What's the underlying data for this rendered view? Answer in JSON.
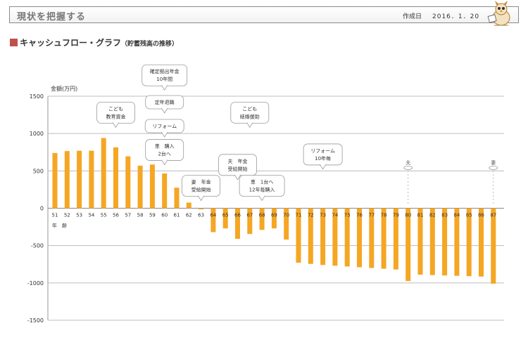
{
  "header": {
    "title": "現状を把握する",
    "date_label": "作成日",
    "date": "2016．1．20",
    "mascot_icon": "owl-mascot-icon"
  },
  "section": {
    "title": "キャッシュフロー・グラフ",
    "subtitle": "（貯蓄残高の推移）"
  },
  "chart_data": {
    "type": "bar",
    "title": "キャッシュフロー・グラフ（貯蓄残高の推移）",
    "ylabel": "金額(万円)",
    "xlabel": "年　齢",
    "ylim": [
      -1500,
      1500
    ],
    "yticks": [
      1500,
      1000,
      500,
      0,
      -500,
      -1000,
      -1500
    ],
    "grid": true,
    "bar_color": "#f5a623",
    "categories": [
      "51",
      "52",
      "53",
      "54",
      "55",
      "56",
      "57",
      "58",
      "59",
      "60",
      "61",
      "62",
      "63",
      "64",
      "65",
      "66",
      "67",
      "68",
      "69",
      "70",
      "71",
      "72",
      "73",
      "74",
      "75",
      "76",
      "77",
      "78",
      "79",
      "80",
      "81",
      "82",
      "83",
      "84",
      "85",
      "86",
      "87"
    ],
    "values": [
      740,
      765,
      770,
      770,
      940,
      815,
      695,
      570,
      585,
      465,
      275,
      75,
      -15,
      -320,
      -270,
      -410,
      -345,
      -290,
      -270,
      -420,
      -730,
      -745,
      -760,
      -770,
      -780,
      -790,
      -800,
      -810,
      -820,
      -975,
      -890,
      -895,
      -900,
      -905,
      -910,
      -915,
      -1010
    ],
    "annotations": [
      {
        "text": [
          "こども",
          "教育資金"
        ],
        "category": "56",
        "y": 1280
      },
      {
        "text": [
          "確定拠出年金",
          "10年間"
        ],
        "category": "60",
        "y": 1780
      },
      {
        "text": [
          "定年退職"
        ],
        "category": "60",
        "y": 1420
      },
      {
        "text": [
          "リフォーム"
        ],
        "category": "60",
        "y": 1100
      },
      {
        "text": [
          "車　購入",
          "2台へ"
        ],
        "category": "60",
        "y": 780
      },
      {
        "text": [
          "こども",
          "結婚援助"
        ],
        "category": "67",
        "y": 1280
      },
      {
        "text": [
          "夫　年金",
          "受給開始"
        ],
        "category": "66",
        "y": 580
      },
      {
        "text": [
          "妻　年金",
          "受給開始"
        ],
        "category": "63",
        "y": 300
      },
      {
        "text": [
          "車　1台へ",
          "12年毎購入"
        ],
        "category": "68",
        "y": 300
      },
      {
        "text": [
          "リフォーム",
          "10年毎"
        ],
        "category": "73",
        "y": 720
      }
    ],
    "markers": [
      {
        "text": "夫",
        "category": "80"
      },
      {
        "text": "妻",
        "category": "87"
      }
    ]
  }
}
